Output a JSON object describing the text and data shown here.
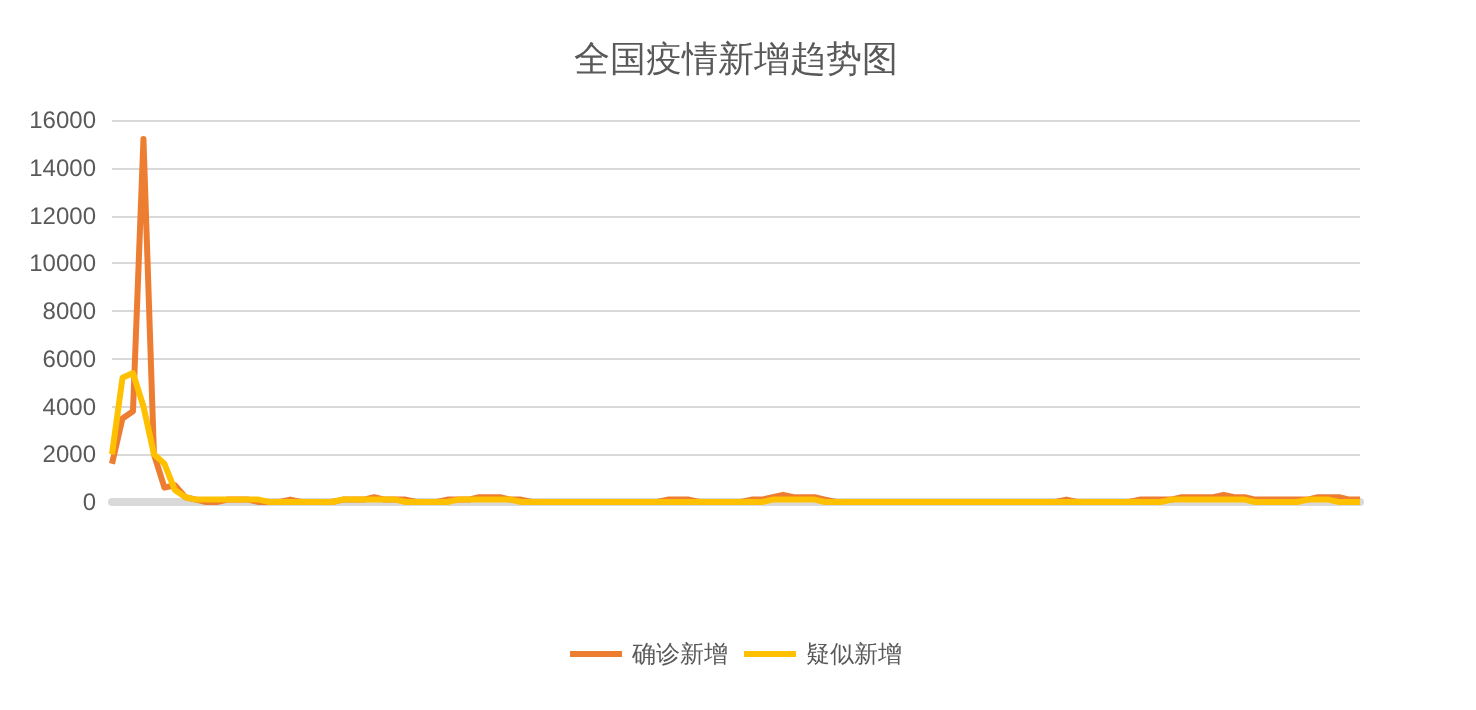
{
  "chart_data": {
    "type": "line",
    "title": "全国疫情新增趋势图",
    "categories": [
      null,
      null,
      null,
      null,
      null,
      null,
      null,
      null,
      null,
      null,
      null,
      null,
      null,
      null,
      null,
      null,
      null,
      null,
      null,
      null,
      null,
      null,
      null,
      null,
      null,
      null,
      null,
      null,
      null,
      null,
      null,
      null,
      null,
      null,
      null,
      null,
      null,
      null,
      null,
      null,
      null,
      null,
      null,
      null,
      null,
      null,
      null,
      null,
      null,
      null,
      null,
      null,
      null,
      null,
      null,
      null,
      null,
      null,
      null,
      null,
      null,
      null,
      null,
      null,
      null,
      null,
      null,
      null,
      null,
      null,
      null,
      null,
      null,
      null,
      null,
      null,
      null,
      null,
      null,
      null,
      null,
      null,
      null,
      null,
      null,
      null,
      null,
      null,
      null,
      null,
      null,
      null,
      null,
      null,
      null,
      null,
      null,
      null,
      null,
      null,
      null,
      null,
      null,
      null,
      null,
      null,
      null,
      null,
      null,
      null,
      null,
      null,
      null,
      null,
      null,
      null,
      null,
      null,
      null,
      null
    ],
    "series": [
      {
        "name": "确诊新增",
        "color": "#ed7d31",
        "values": [
          1600,
          3500,
          3800,
          15200,
          2000,
          600,
          700,
          200,
          100,
          0,
          0,
          100,
          100,
          100,
          0,
          0,
          0,
          100,
          0,
          0,
          0,
          0,
          100,
          100,
          100,
          200,
          100,
          100,
          100,
          0,
          0,
          0,
          100,
          100,
          100,
          200,
          200,
          200,
          100,
          100,
          0,
          0,
          0,
          0,
          0,
          0,
          0,
          0,
          0,
          0,
          0,
          0,
          0,
          100,
          100,
          100,
          0,
          0,
          0,
          0,
          0,
          100,
          100,
          200,
          300,
          200,
          200,
          200,
          100,
          0,
          0,
          0,
          0,
          0,
          0,
          0,
          0,
          0,
          0,
          0,
          0,
          0,
          0,
          0,
          0,
          0,
          0,
          0,
          0,
          0,
          0,
          100,
          0,
          0,
          0,
          0,
          0,
          0,
          100,
          100,
          100,
          100,
          200,
          200,
          200,
          200,
          300,
          200,
          200,
          100,
          100,
          100,
          100,
          100,
          100,
          200,
          200,
          200,
          100,
          100
        ]
      },
      {
        "name": "疑似新增",
        "color": "#ffc000",
        "values": [
          2000,
          5200,
          5400,
          4000,
          2000,
          1600,
          500,
          200,
          100,
          100,
          100,
          100,
          100,
          100,
          100,
          0,
          0,
          0,
          0,
          0,
          0,
          0,
          100,
          100,
          100,
          100,
          100,
          100,
          0,
          0,
          0,
          0,
          0,
          100,
          100,
          100,
          100,
          100,
          100,
          0,
          0,
          0,
          0,
          0,
          0,
          0,
          0,
          0,
          0,
          0,
          0,
          0,
          0,
          0,
          0,
          0,
          0,
          0,
          0,
          0,
          0,
          0,
          0,
          100,
          100,
          100,
          100,
          100,
          0,
          0,
          0,
          0,
          0,
          0,
          0,
          0,
          0,
          0,
          0,
          0,
          0,
          0,
          0,
          0,
          0,
          0,
          0,
          0,
          0,
          0,
          0,
          0,
          0,
          0,
          0,
          0,
          0,
          0,
          0,
          0,
          0,
          100,
          100,
          100,
          100,
          100,
          100,
          100,
          100,
          0,
          0,
          0,
          0,
          0,
          100,
          100,
          100,
          0,
          0,
          0
        ]
      }
    ],
    "ylim": [
      0,
      16000
    ],
    "yticks": [
      0,
      2000,
      4000,
      6000,
      8000,
      10000,
      12000,
      14000,
      16000
    ],
    "grid": "y",
    "legend": "bottom",
    "marker": "none"
  }
}
